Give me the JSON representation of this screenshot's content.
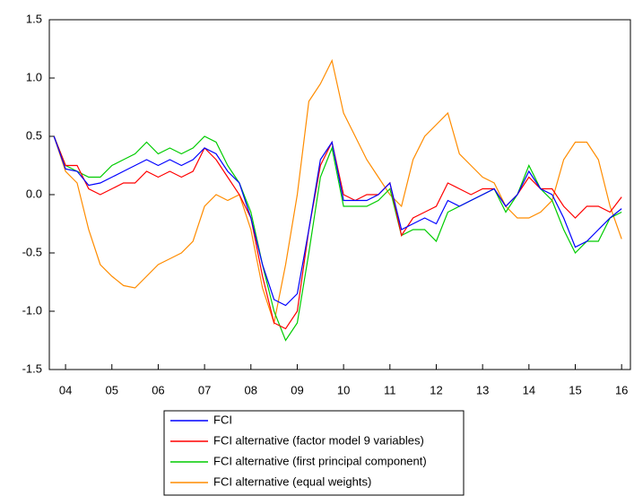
{
  "chart_data": {
    "type": "line",
    "x": [
      2004.25,
      2004.5,
      2004.75,
      2005,
      2005.25,
      2005.5,
      2005.75,
      2006,
      2006.25,
      2006.5,
      2006.75,
      2007,
      2007.25,
      2007.5,
      2007.75,
      2008,
      2008.25,
      2008.5,
      2008.75,
      2009,
      2009.25,
      2009.5,
      2009.75,
      2010,
      2010.25,
      2010.5,
      2010.75,
      2011,
      2011.25,
      2011.5,
      2011.75,
      2012,
      2012.25,
      2012.5,
      2012.75,
      2013,
      2013.25,
      2013.5,
      2013.75,
      2014,
      2014.25,
      2014.5,
      2014.75,
      2015,
      2015.25,
      2015.5,
      2015.75,
      2016,
      2016.25,
      2016.5
    ],
    "series": [
      {
        "name": "FCI",
        "color": "#0000ff",
        "values": [
          0.5,
          0.22,
          0.2,
          0.08,
          0.1,
          0.15,
          0.2,
          0.25,
          0.3,
          0.25,
          0.3,
          0.25,
          0.3,
          0.4,
          0.35,
          0.2,
          0.1,
          -0.2,
          -0.6,
          -0.9,
          -0.95,
          -0.85,
          -0.3,
          0.3,
          0.45,
          -0.05,
          -0.05,
          -0.05,
          0.0,
          0.1,
          -0.3,
          -0.25,
          -0.2,
          -0.25,
          -0.05,
          -0.1,
          -0.05,
          0.0,
          0.05,
          -0.1,
          0.0,
          0.2,
          0.05,
          0.0,
          -0.2,
          -0.45,
          -0.4,
          -0.3,
          -0.2,
          -0.12
        ]
      },
      {
        "name": "FCI alternative (factor model 9 variables)",
        "color": "#ff0000",
        "values": [
          0.5,
          0.25,
          0.25,
          0.05,
          0.0,
          0.05,
          0.1,
          0.1,
          0.2,
          0.15,
          0.2,
          0.15,
          0.2,
          0.4,
          0.3,
          0.15,
          0.0,
          -0.2,
          -0.7,
          -1.1,
          -1.15,
          -1.0,
          -0.3,
          0.25,
          0.45,
          0.0,
          -0.05,
          0.0,
          0.0,
          0.1,
          -0.35,
          -0.2,
          -0.15,
          -0.1,
          0.1,
          0.05,
          0.0,
          0.05,
          0.05,
          -0.1,
          0.0,
          0.15,
          0.05,
          0.05,
          -0.1,
          -0.2,
          -0.1,
          -0.1,
          -0.15,
          -0.02
        ]
      },
      {
        "name": "FCI alternative (first principal component)",
        "color": "#00cc00",
        "values": [
          0.5,
          0.25,
          0.2,
          0.15,
          0.15,
          0.25,
          0.3,
          0.35,
          0.45,
          0.35,
          0.4,
          0.35,
          0.4,
          0.5,
          0.45,
          0.25,
          0.1,
          -0.15,
          -0.6,
          -1.0,
          -1.25,
          -1.1,
          -0.5,
          0.15,
          0.4,
          -0.1,
          -0.1,
          -0.1,
          -0.05,
          0.05,
          -0.35,
          -0.3,
          -0.3,
          -0.4,
          -0.15,
          -0.1,
          -0.05,
          0.0,
          0.05,
          -0.15,
          0.0,
          0.25,
          0.05,
          -0.05,
          -0.3,
          -0.5,
          -0.4,
          -0.4,
          -0.2,
          -0.15
        ]
      },
      {
        "name": "FCI alternative (equal weights)",
        "color": "#ff8c00",
        "values": [
          0.5,
          0.2,
          0.1,
          -0.3,
          -0.6,
          -0.7,
          -0.78,
          -0.8,
          -0.7,
          -0.6,
          -0.55,
          -0.5,
          -0.4,
          -0.1,
          0.0,
          -0.05,
          0.0,
          -0.3,
          -0.8,
          -1.1,
          -0.6,
          0.0,
          0.8,
          0.95,
          1.15,
          0.7,
          0.5,
          0.3,
          0.15,
          0.0,
          -0.1,
          0.3,
          0.5,
          0.6,
          0.7,
          0.35,
          0.25,
          0.15,
          0.1,
          -0.1,
          -0.2,
          -0.2,
          -0.15,
          -0.05,
          0.3,
          0.45,
          0.45,
          0.3,
          -0.1,
          -0.38
        ]
      }
    ],
    "xlim": [
      2004.15,
      2016.69
    ],
    "xticks": [
      {
        "value": 2004.5,
        "label": "04"
      },
      {
        "value": 2005.5,
        "label": "05"
      },
      {
        "value": 2006.5,
        "label": "06"
      },
      {
        "value": 2007.5,
        "label": "07"
      },
      {
        "value": 2008.5,
        "label": "08"
      },
      {
        "value": 2009.5,
        "label": "09"
      },
      {
        "value": 2010.5,
        "label": "10"
      },
      {
        "value": 2011.5,
        "label": "11"
      },
      {
        "value": 2012.5,
        "label": "12"
      },
      {
        "value": 2013.5,
        "label": "13"
      },
      {
        "value": 2014.5,
        "label": "14"
      },
      {
        "value": 2015.5,
        "label": "15"
      },
      {
        "value": 2016.5,
        "label": "16"
      }
    ],
    "ylim": [
      -1.5,
      1.5
    ],
    "yticks": [
      -1.5,
      -0.5,
      0.5,
      1.5,
      {
        "value": -1.0,
        "label": "-1.0"
      },
      {
        "value": 0.0,
        "label": "0.0"
      },
      {
        "value": 1.0,
        "label": "1.0"
      }
    ],
    "grid": false
  }
}
